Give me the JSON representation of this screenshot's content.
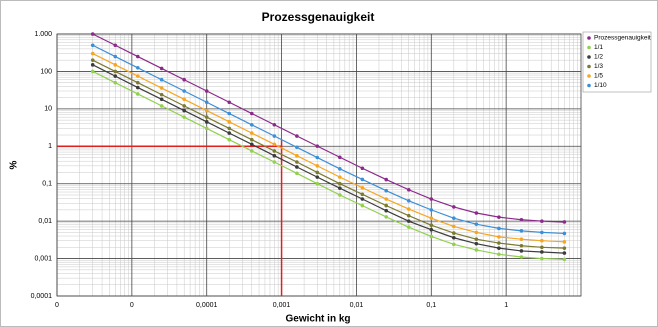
{
  "chart_data": {
    "type": "line",
    "title": "Prozessgenauigkeit",
    "xlabel": "Gewicht in kg",
    "ylabel": "%",
    "xscale": "log",
    "yscale": "log",
    "grid": true,
    "legend": "right",
    "xlim": [
      1e-06,
      10
    ],
    "ylim": [
      0.0001,
      1000
    ],
    "xticks": [
      {
        "value": 1e-06,
        "label": "0"
      },
      {
        "value": 1e-05,
        "label": "0"
      },
      {
        "value": 0.0001,
        "label": "0,0001"
      },
      {
        "value": 0.001,
        "label": "0,001"
      },
      {
        "value": 0.01,
        "label": "0,01"
      },
      {
        "value": 0.1,
        "label": "0,1"
      },
      1
    ],
    "yticks": [
      {
        "value": 0.0001,
        "label": "0,0001"
      },
      {
        "value": 0.001,
        "label": "0,001"
      },
      {
        "value": 0.01,
        "label": "0,01"
      },
      {
        "value": 0.1,
        "label": "0,1"
      },
      1,
      10,
      100,
      {
        "value": 1000,
        "label": "1.000"
      }
    ],
    "x": [
      3e-06,
      6e-06,
      1.2e-05,
      2.5e-05,
      5e-05,
      0.0001,
      0.0002,
      0.0004,
      0.0008,
      0.0016,
      0.003,
      0.006,
      0.012,
      0.025,
      0.05,
      0.1,
      0.2,
      0.4,
      0.8,
      1.6,
      3,
      6
    ],
    "series": [
      {
        "name": "Prozessgenauigkeit",
        "color": "#8b2a8b",
        "values": [
          1000,
          500,
          250,
          120,
          60,
          30,
          15,
          7.5,
          3.76,
          1.88,
          1.01,
          0.509,
          0.259,
          0.129,
          0.069,
          0.039,
          0.024,
          0.0165,
          0.0128,
          0.0109,
          0.01,
          0.0095
        ]
      },
      {
        "name": "1/1",
        "color": "#92d050",
        "values": [
          100,
          50,
          25,
          12,
          6,
          3,
          1.5,
          0.75,
          0.38,
          0.19,
          0.1,
          0.05,
          0.026,
          0.013,
          0.0069,
          0.0039,
          0.0024,
          0.0017,
          0.0013,
          0.0011,
          0.001,
          0.00095
        ]
      },
      {
        "name": "1/2",
        "color": "#3c3c3c",
        "values": [
          150,
          75,
          37,
          18,
          9,
          4.5,
          2.25,
          1.13,
          0.56,
          0.28,
          0.15,
          0.076,
          0.039,
          0.019,
          0.01,
          0.0059,
          0.0036,
          0.0025,
          0.0019,
          0.0016,
          0.0015,
          0.0014
        ]
      },
      {
        "name": "1/3",
        "color": "#7a7a30",
        "values": [
          200,
          100,
          50,
          24,
          12,
          6,
          3,
          1.5,
          0.75,
          0.38,
          0.2,
          0.1,
          0.052,
          0.026,
          0.014,
          0.0078,
          0.0048,
          0.0033,
          0.0026,
          0.0022,
          0.002,
          0.0019
        ]
      },
      {
        "name": "1/5",
        "color": "#f5a623",
        "values": [
          300,
          150,
          75,
          36,
          18,
          9,
          4.5,
          2.25,
          1.13,
          0.56,
          0.3,
          0.15,
          0.078,
          0.039,
          0.021,
          0.012,
          0.0072,
          0.005,
          0.0038,
          0.0033,
          0.003,
          0.0028
        ]
      },
      {
        "name": "1/10",
        "color": "#3b8fd8",
        "values": [
          500,
          250,
          125,
          60,
          30,
          15,
          7.5,
          3.75,
          1.88,
          0.94,
          0.5,
          0.25,
          0.13,
          0.065,
          0.035,
          0.02,
          0.012,
          0.0083,
          0.0064,
          0.0055,
          0.005,
          0.0047
        ]
      }
    ],
    "reference": {
      "x": 0.001,
      "y": 1,
      "color": "#e02020"
    }
  }
}
